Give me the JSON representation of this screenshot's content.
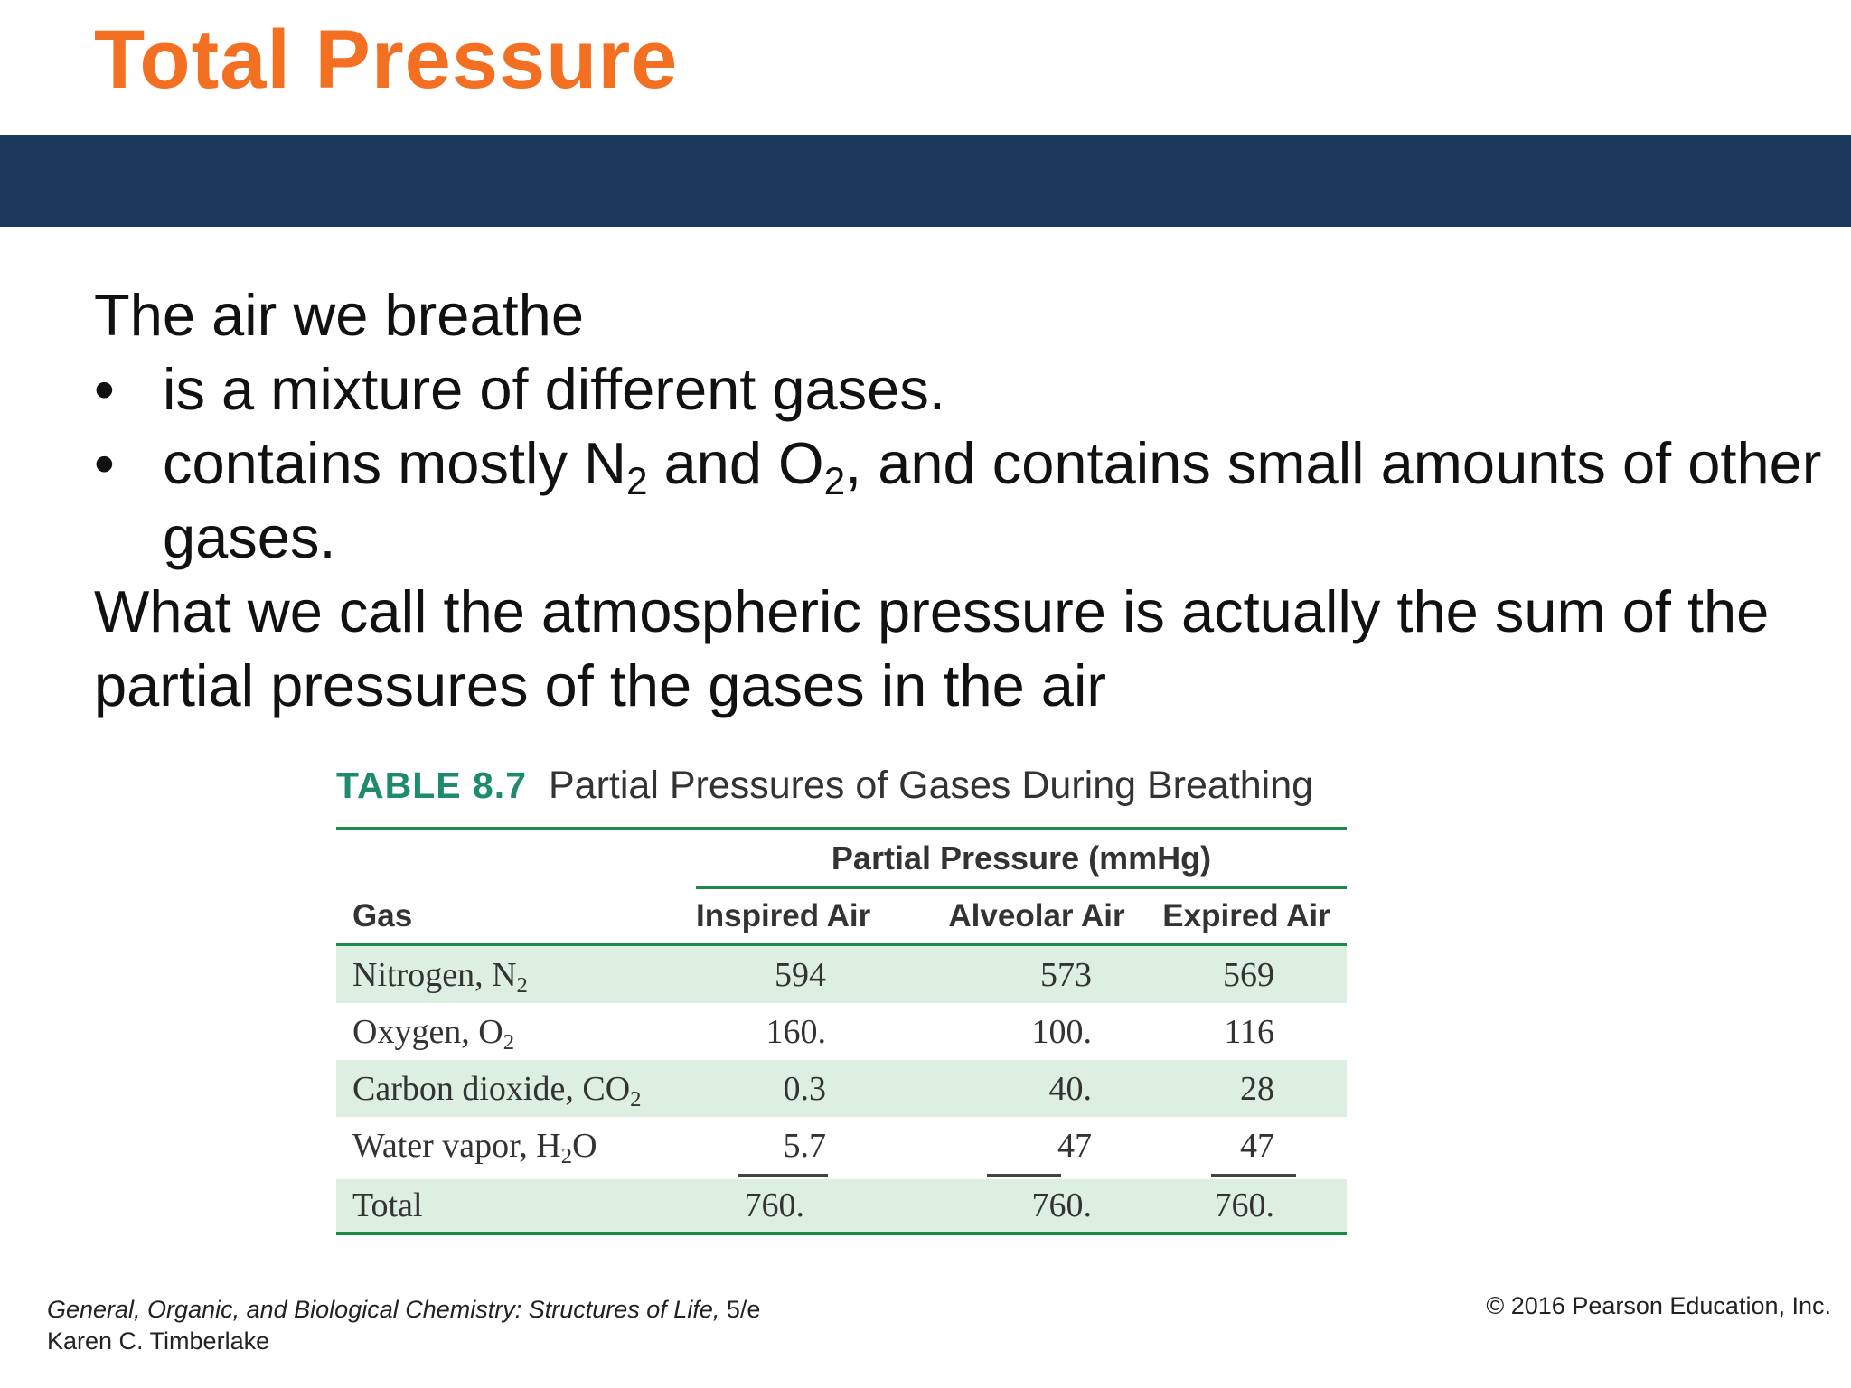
{
  "slide": {
    "title": "Total Pressure",
    "colors": {
      "title": "#f36f21",
      "band": "#1b375c",
      "table_accent": "#1e8a4a",
      "row_shade": "#dcefe0"
    }
  },
  "body": {
    "intro": "The air we breathe",
    "bullet_glyph": "•",
    "bullet1": "is a mixture of different gases.",
    "bullet2": {
      "part1": "contains mostly N",
      "sub1": "2",
      "part2": " and O",
      "sub2": "2",
      "part3": ", and contains small amounts of other gases."
    },
    "conclusion": "What we call the atmospheric pressure is actually the sum of the partial pressures of the gases in the air"
  },
  "table": {
    "number": "TABLE 8.7",
    "caption": "Partial Pressures of Gases During Breathing",
    "group_header": "Partial Pressure (mmHg)",
    "headers": [
      "Gas",
      "Inspired Air",
      "Alveolar Air",
      "Expired Air"
    ],
    "rows": [
      {
        "gas": "Nitrogen, N",
        "gas_sub": "2",
        "gas_tail": "",
        "inspired": "594",
        "alveolar": "573",
        "expired": "569"
      },
      {
        "gas": "Oxygen, O",
        "gas_sub": "2",
        "gas_tail": "",
        "inspired": "160.",
        "alveolar": "100.",
        "expired": "116"
      },
      {
        "gas": "Carbon dioxide, CO",
        "gas_sub": "2",
        "gas_tail": "",
        "inspired": "0.3",
        "alveolar": "40.",
        "expired": "28"
      },
      {
        "gas": "Water vapor, H",
        "gas_sub": "2",
        "gas_tail": "O",
        "inspired": "5.7",
        "alveolar": "47",
        "expired": "47"
      }
    ],
    "total": {
      "label": "Total",
      "inspired": "760.",
      "alveolar": "760.",
      "expired": "760."
    }
  },
  "footer": {
    "book_title": "General, Organic, and Biological Chemistry: Structures of Life,",
    "edition": " 5/e",
    "author": "Karen C. Timberlake",
    "copyright": "© 2016 Pearson Education, Inc."
  }
}
